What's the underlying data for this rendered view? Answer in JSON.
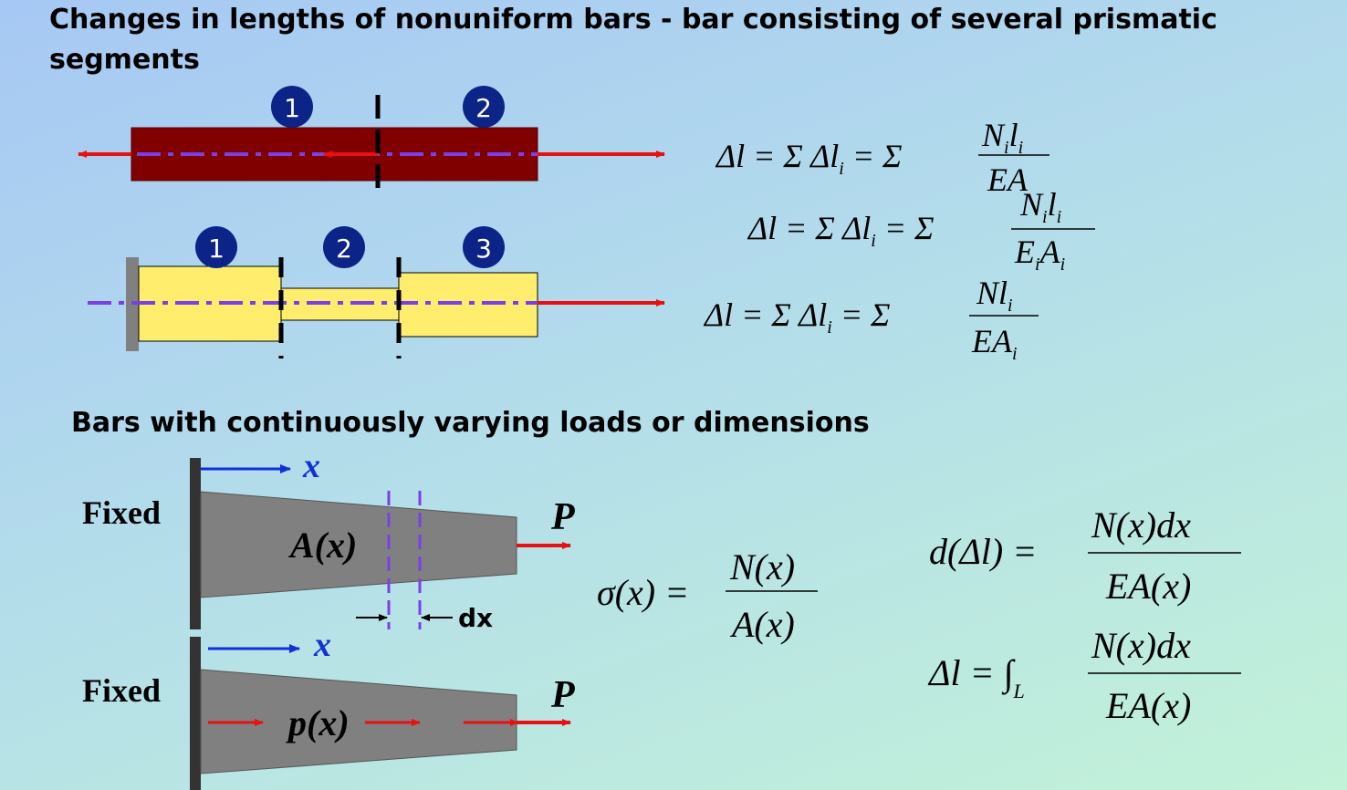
{
  "title": "Changes in lengths of nonuniform bars - bar consisting of several prismatic segments",
  "subheading": "Bars with continuously varying loads or dimensions",
  "segments_top": [
    "1",
    "2"
  ],
  "segments_middle": [
    "1",
    "2",
    "3"
  ],
  "formulas": {
    "f1": {
      "lhs": "Δl = Σ Δl",
      "mid": " = Σ ",
      "num": "N",
      "num2": "l",
      "den": "EA",
      "sub": "i"
    },
    "f2": {
      "lhs": "Δl = Σ Δl",
      "mid": " = Σ ",
      "num": "N",
      "num2": "l",
      "den1": "E",
      "den2": "A",
      "sub": "i"
    },
    "f3": {
      "lhs": "Δl = Σ Δl",
      "mid": " = Σ ",
      "num": "Nl",
      "den": "EA",
      "sub": "i"
    },
    "sigma": {
      "lhs": "σ(x) =",
      "num": "N(x)",
      "den": "A(x)"
    },
    "d_delta": {
      "lhs": "d(Δl) =",
      "num": "N(x)dx",
      "den": "EA(x)"
    },
    "integral": {
      "lhs": "Δl = ∫",
      "sub": "L",
      "num": "N(x)dx",
      "den": "EA(x)"
    }
  },
  "labels": {
    "fixed_1": "Fixed",
    "fixed_2": "Fixed",
    "x_1": "x",
    "x_2": "x",
    "area": "A(x)",
    "load": "p(x)",
    "P_1": "P",
    "P_2": "P",
    "dx": "dx"
  },
  "colors": {
    "dark_bar": "#800000",
    "yellow_bar": "#ffee6e",
    "gray_bar": "#808080",
    "axis_line": "#7a40e8",
    "force_arrow": "#e81010",
    "x_arrow": "#1030d8",
    "badge": "#0c2488"
  }
}
